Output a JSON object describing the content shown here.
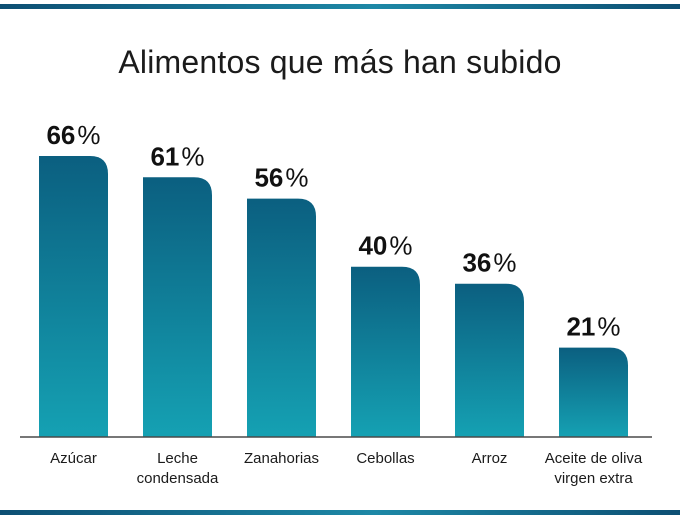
{
  "header": {
    "title": "Alimentos que más han subido"
  },
  "chart_data": {
    "type": "bar",
    "title": "Alimentos que más han subido",
    "categories": [
      [
        "Azúcar"
      ],
      [
        "Leche",
        "condensada"
      ],
      [
        "Zanahorias"
      ],
      [
        "Cebollas"
      ],
      [
        "Arroz"
      ],
      [
        "Aceite de oliva",
        "virgen extra"
      ]
    ],
    "values": [
      66,
      61,
      56,
      40,
      36,
      21
    ],
    "value_suffix": "%",
    "ylim": [
      0,
      66
    ],
    "grid": false,
    "legend": "none",
    "colors": {
      "bar_top": "#0b5f80",
      "bar_bottom": "#15a1b3",
      "baseline": "#4a4a4a"
    }
  }
}
